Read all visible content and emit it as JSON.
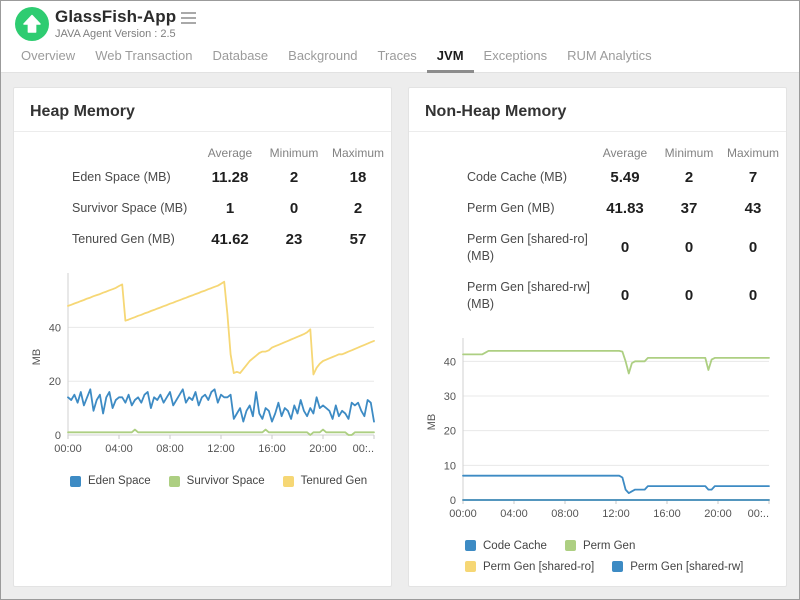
{
  "header": {
    "app_name": "GlassFish-App",
    "subtitle": "JAVA Agent Version : 2.5",
    "logo_color": "#2ecc71"
  },
  "tabs": [
    {
      "label": "Overview",
      "active": false
    },
    {
      "label": "Web Transaction",
      "active": false
    },
    {
      "label": "Database",
      "active": false
    },
    {
      "label": "Background",
      "active": false
    },
    {
      "label": "Traces",
      "active": false
    },
    {
      "label": "JVM",
      "active": true
    },
    {
      "label": "Exceptions",
      "active": false
    },
    {
      "label": "RUM Analytics",
      "active": false
    }
  ],
  "panels": [
    {
      "title": "Heap Memory",
      "table": {
        "columns": [
          "Average",
          "Minimum",
          "Maximum"
        ],
        "rows": [
          {
            "label": "Eden Space (MB)",
            "values": [
              "11.28",
              "2",
              "18"
            ]
          },
          {
            "label": "Survivor Space (MB)",
            "values": [
              "1",
              "0",
              "2"
            ]
          },
          {
            "label": "Tenured Gen (MB)",
            "values": [
              "41.62",
              "23",
              "57"
            ]
          }
        ]
      },
      "chart_data": {
        "type": "line",
        "ylabel": "MB",
        "ylim": [
          0,
          58
        ],
        "yticks": [
          0,
          20,
          40
        ],
        "xticks": [
          "00:00",
          "04:00",
          "08:00",
          "12:00",
          "16:00",
          "20:00",
          "00:.."
        ],
        "legend_rows": [
          [
            "Eden Space",
            "Survivor Space",
            "Tenured Gen"
          ]
        ],
        "series": [
          {
            "name": "Eden Space",
            "color": "#3d8bc4",
            "values": [
              14,
              13,
              15,
              12,
              16,
              11,
              14,
              17,
              9,
              13,
              15,
              8,
              14,
              16,
              10,
              13,
              14,
              14,
              12,
              15,
              11,
              13,
              14,
              12,
              15,
              16,
              10,
              14,
              13,
              15,
              12,
              14,
              16,
              11,
              13,
              15,
              17,
              12,
              14,
              13,
              16,
              11,
              14,
              15,
              13,
              16,
              17,
              12,
              15,
              14,
              14,
              15,
              6,
              8,
              10,
              5,
              9,
              11,
              7,
              16,
              8,
              6,
              10,
              9,
              5,
              8,
              12,
              7,
              10,
              9,
              6,
              11,
              8,
              13,
              9,
              7,
              10,
              8,
              14,
              10,
              11,
              10,
              9,
              6,
              11,
              7,
              9,
              8,
              6,
              12,
              11,
              12,
              9,
              7,
              13,
              12,
              5
            ]
          },
          {
            "name": "Survivor Space",
            "color": "#adcf82",
            "values": [
              1,
              1,
              1,
              1,
              1,
              1,
              1,
              1,
              1,
              1,
              1,
              1,
              1,
              1,
              1,
              1,
              1,
              1,
              1,
              1,
              1,
              2,
              1,
              1,
              1,
              1,
              1,
              1,
              1,
              1,
              1,
              1,
              1,
              1,
              1,
              1,
              1,
              1,
              1,
              1,
              1,
              1,
              1,
              1,
              1,
              1,
              1,
              1,
              1,
              1,
              1,
              1,
              1,
              1,
              1,
              1,
              1,
              1,
              1,
              1,
              1,
              1,
              2,
              1,
              1,
              1,
              1,
              1,
              1,
              1,
              1,
              1,
              1,
              1,
              1,
              1,
              0,
              1,
              1,
              1,
              2,
              1,
              1,
              1,
              1,
              1,
              1,
              1,
              0,
              0,
              1,
              1,
              1,
              1,
              1,
              1,
              1
            ]
          },
          {
            "name": "Tenured Gen",
            "color": "#f6d775",
            "values": [
              48,
              48.4,
              48.9,
              49.3,
              49.8,
              50.2,
              50.7,
              51.1,
              51.6,
              52,
              52.4,
              52.9,
              53.3,
              53.8,
              54.2,
              54.7,
              55.4,
              56,
              42.5,
              42.9,
              43.4,
              43.8,
              44.3,
              44.7,
              45.2,
              45.6,
              46.1,
              46.5,
              47,
              47.4,
              47.9,
              48.3,
              48.8,
              49.2,
              49.7,
              50.1,
              50.6,
              51,
              51.5,
              51.9,
              52.4,
              52.8,
              53.3,
              53.7,
              54.2,
              54.6,
              55.1,
              55.5,
              56.2,
              57,
              45,
              30,
              23,
              23.5,
              23,
              24.5,
              26,
              27.5,
              28.5,
              29.5,
              30.5,
              31,
              31,
              31.5,
              32.5,
              33,
              33.5,
              34,
              34.5,
              35,
              35.5,
              36,
              36.5,
              37,
              37.5,
              38.2,
              39.3,
              22.5,
              25,
              26.5,
              27.5,
              28,
              28.5,
              29,
              29.5,
              30,
              30,
              30.5,
              31,
              31.5,
              32,
              32.5,
              33,
              33.5,
              34,
              34.5,
              35
            ]
          }
        ]
      }
    },
    {
      "title": "Non-Heap Memory",
      "table": {
        "columns": [
          "Average",
          "Minimum",
          "Maximum"
        ],
        "rows": [
          {
            "label": "Code Cache (MB)",
            "values": [
              "5.49",
              "2",
              "7"
            ]
          },
          {
            "label": "Perm Gen (MB)",
            "values": [
              "41.83",
              "37",
              "43"
            ]
          },
          {
            "label": "Perm Gen [shared-ro] (MB)",
            "values": [
              "0",
              "0",
              "0"
            ]
          },
          {
            "label": "Perm Gen [shared-rw] (MB)",
            "values": [
              "0",
              "0",
              "0"
            ]
          }
        ]
      },
      "chart_data": {
        "type": "line",
        "ylabel": "MB",
        "ylim": [
          0,
          45
        ],
        "yticks": [
          0,
          10,
          20,
          30,
          40
        ],
        "xticks": [
          "00:00",
          "04:00",
          "08:00",
          "12:00",
          "16:00",
          "20:00",
          "00:.."
        ],
        "legend_rows": [
          [
            "Code Cache",
            "Perm Gen"
          ],
          [
            "Perm Gen [shared-ro]",
            "Perm Gen [shared-rw]"
          ]
        ],
        "series": [
          {
            "name": "Code Cache",
            "color": "#3d8bc4",
            "values": [
              7,
              7,
              7,
              7,
              7,
              7,
              7,
              7,
              7,
              7,
              7,
              7,
              7,
              7,
              7,
              7,
              7,
              7,
              7,
              7,
              7,
              7,
              7,
              7,
              7,
              7,
              7,
              7,
              7,
              7,
              7,
              7,
              7,
              7,
              7,
              7,
              7,
              7,
              7,
              7,
              7,
              7,
              7,
              7,
              7,
              7,
              7,
              7,
              7,
              7,
              6.5,
              3,
              2,
              2.5,
              3,
              3,
              3,
              3,
              4,
              4,
              4,
              4,
              4,
              4,
              4,
              4,
              4,
              4,
              4,
              4,
              4,
              4,
              4,
              4,
              4,
              4,
              4,
              3,
              3,
              4,
              4,
              4,
              4,
              4,
              4,
              4,
              4,
              4,
              4,
              4,
              4,
              4,
              4,
              4,
              4,
              4,
              4
            ]
          },
          {
            "name": "Perm Gen",
            "color": "#adcf82",
            "values": [
              42,
              42,
              42,
              42,
              42,
              42,
              42,
              42.5,
              43,
              43,
              43,
              43,
              43,
              43,
              43,
              43,
              43,
              43,
              43,
              43,
              43,
              43,
              43,
              43,
              43,
              43,
              43,
              43,
              43,
              43,
              43,
              43,
              43,
              43,
              43,
              43,
              43,
              43,
              43,
              43,
              43,
              43,
              43,
              43,
              43,
              43,
              43,
              43,
              43,
              43,
              42.8,
              40,
              36.5,
              39.5,
              40,
              40,
              40,
              40,
              41,
              41,
              41,
              41,
              41,
              41,
              41,
              41,
              41,
              41,
              41,
              41,
              41,
              41,
              41,
              41,
              41,
              41,
              41,
              37.5,
              40.5,
              41,
              41,
              41,
              41,
              41,
              41,
              41,
              41,
              41,
              41,
              41,
              41,
              41,
              41,
              41,
              41,
              41,
              41
            ]
          },
          {
            "name": "Perm Gen [shared-ro]",
            "color": "#f6d775",
            "values": [
              0,
              0
            ]
          },
          {
            "name": "Perm Gen [shared-rw]",
            "color": "#3d8bc4",
            "values": [
              0,
              0
            ]
          }
        ]
      }
    }
  ]
}
